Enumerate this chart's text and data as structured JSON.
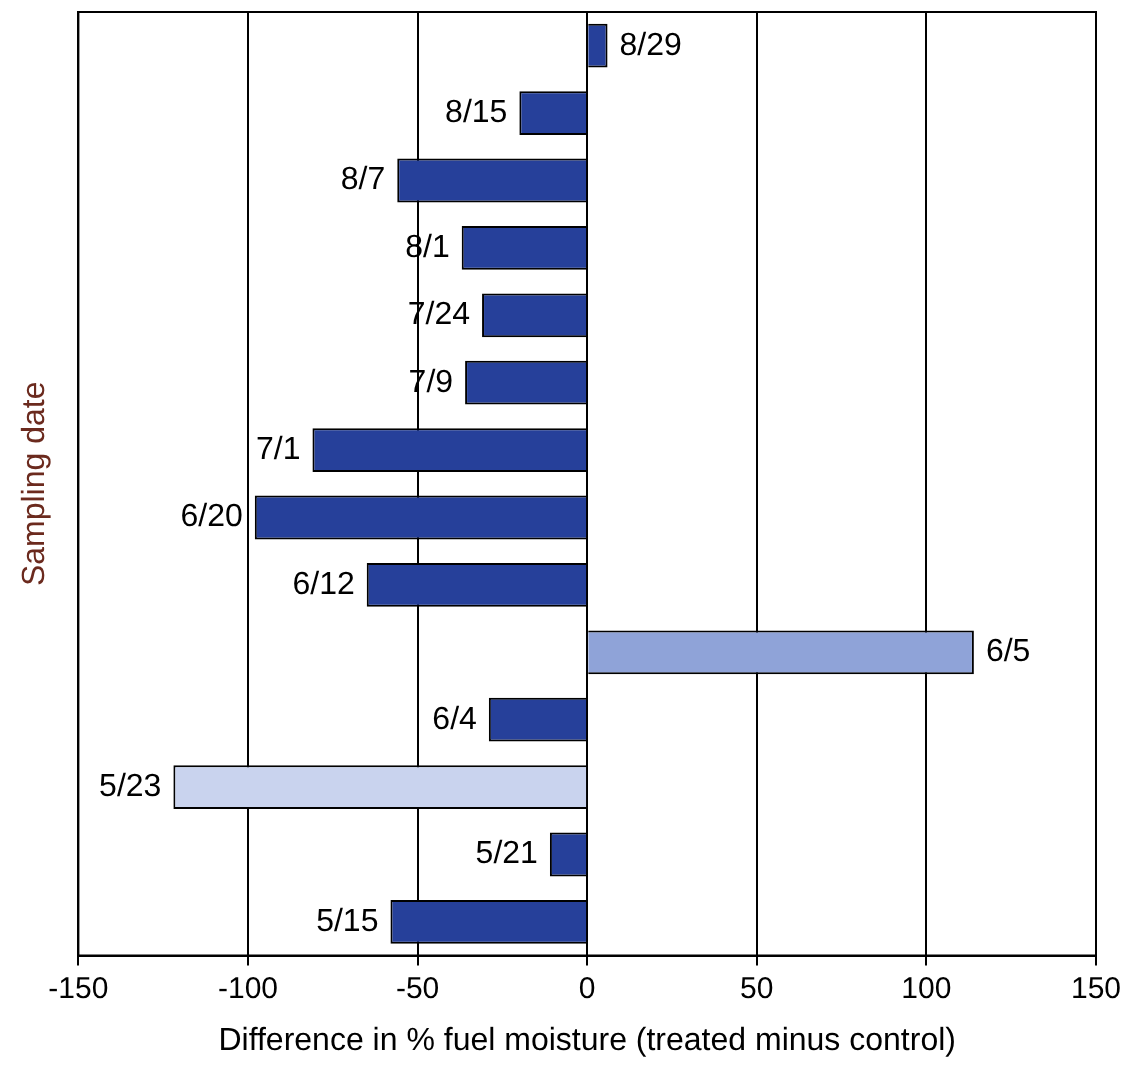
{
  "chart_data": {
    "type": "bar",
    "orientation": "horizontal",
    "xlabel": "Difference in % fuel moisture (treated minus control)",
    "ylabel": "Sampling date",
    "categories": [
      "8/29",
      "8/15",
      "8/7",
      "8/1",
      "7/24",
      "7/9",
      "7/1",
      "6/20",
      "6/12",
      "6/5",
      "6/4",
      "5/23",
      "5/21",
      "5/15"
    ],
    "values": [
      6,
      -20,
      -56,
      -37,
      -31,
      -36,
      -81,
      -98,
      -65,
      114,
      -29,
      -122,
      -11,
      -58
    ],
    "colors": [
      "#26409a",
      "#26409a",
      "#26409a",
      "#26409a",
      "#26409a",
      "#26409a",
      "#26409a",
      "#26409a",
      "#26409a",
      "#8fa3d8",
      "#26409a",
      "#c9d3ee",
      "#26409a",
      "#26409a"
    ],
    "xlim": [
      -150,
      150
    ],
    "xticks": [
      -150,
      -100,
      -50,
      0,
      50,
      100,
      150
    ],
    "grid": "x",
    "tick_labels": "x"
  }
}
